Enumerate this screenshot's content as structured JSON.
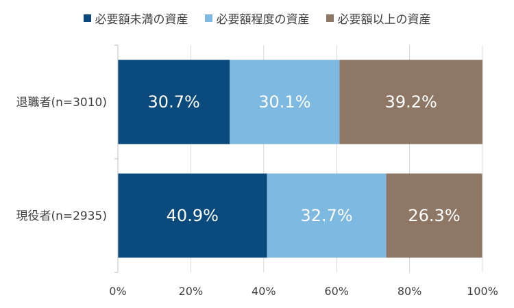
{
  "chart_data": {
    "type": "bar",
    "orientation": "horizontal",
    "stacked": true,
    "percent_stacked": true,
    "categories": [
      "退職者(n=3010)",
      "現役者(n=2935)"
    ],
    "series": [
      {
        "name": "必要額未満の資産",
        "values": [
          30.7,
          40.9
        ],
        "labels": [
          "30.7%",
          "40.9%"
        ],
        "color": "#0b4a7c"
      },
      {
        "name": "必要額程度の資産",
        "values": [
          30.1,
          32.7
        ],
        "labels": [
          "30.1%",
          "32.7%"
        ],
        "color": "#7db9e0"
      },
      {
        "name": "必要額以上の資産",
        "values": [
          39.2,
          26.3
        ],
        "labels": [
          "39.2%",
          "26.3%"
        ],
        "color": "#8e7765"
      }
    ],
    "x_ticks": [
      "0%",
      "20%",
      "40%",
      "60%",
      "80%",
      "100%"
    ],
    "xlim": [
      0,
      100
    ],
    "title": "",
    "xlabel": "",
    "ylabel": "",
    "grid": true,
    "legend_position": "top"
  }
}
